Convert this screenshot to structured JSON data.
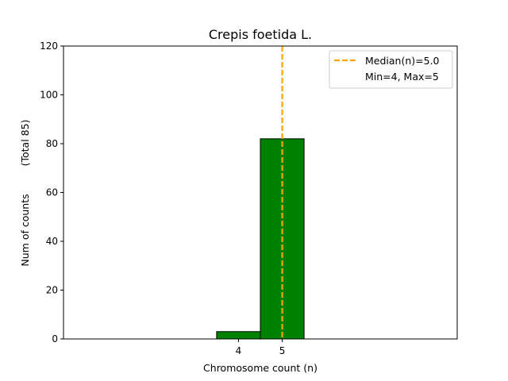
{
  "chart_data": {
    "type": "bar",
    "title": "Crepis foetida L.",
    "xlabel": "Chromosome count (n)",
    "ylabel": "Num of counts",
    "ylabel_extra": "(Total 85)",
    "categories": [
      4,
      5
    ],
    "values": [
      3,
      82
    ],
    "x_ticks": [
      4,
      5
    ],
    "y_ticks": [
      0,
      20,
      40,
      60,
      80,
      100,
      120
    ],
    "xlim": [
      0.0,
      9.0
    ],
    "ylim": [
      0,
      120
    ],
    "bar_color": "#008000",
    "bar_edge_color": "#000000",
    "baseline_end": 8.5,
    "median": 5.0,
    "median_color": "#FFA500",
    "legend": {
      "position": "top-right",
      "entries": [
        "Median(n)=5.0",
        "Min=4, Max=5"
      ]
    }
  }
}
